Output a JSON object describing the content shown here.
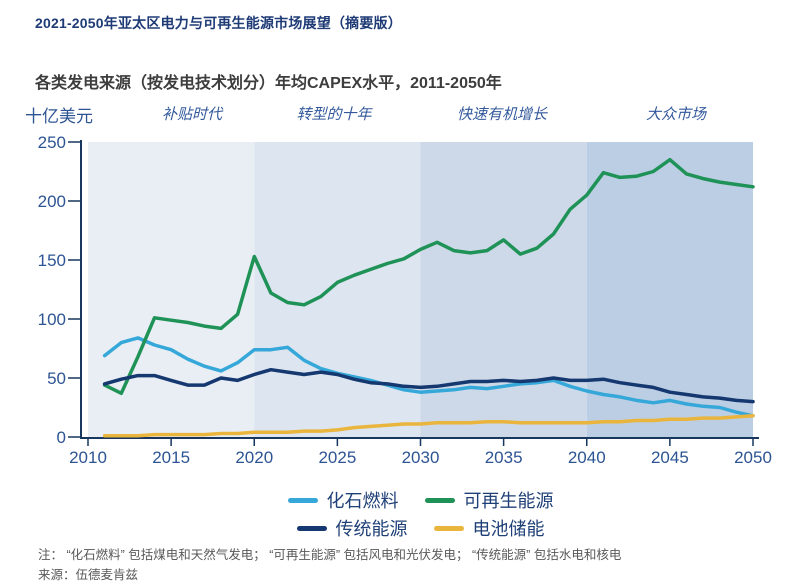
{
  "page_title": "2021-2050年亚太区电力与可再生能源市场展望（摘要版）",
  "chart_data": {
    "type": "line",
    "title": "各类发电来源（按发电技术划分）年均CAPEX水平，2011-2050年",
    "unit_label": "十亿美元",
    "xlim": [
      2010,
      2050
    ],
    "ylim": [
      0,
      250
    ],
    "y_ticks": [
      0,
      50,
      100,
      150,
      200,
      250
    ],
    "x_ticks": [
      2010,
      2015,
      2020,
      2025,
      2030,
      2035,
      2040,
      2045,
      2050
    ],
    "grid": false,
    "legend_position": "bottom",
    "era_bands": [
      {
        "label": "补贴时代",
        "start": 2010,
        "end": 2020,
        "color": "#e9eef4"
      },
      {
        "label": "转型的十年",
        "start": 2020,
        "end": 2030,
        "color": "#dde5f0"
      },
      {
        "label": "快速有机增长",
        "start": 2030,
        "end": 2040,
        "color": "#cdd9e9"
      },
      {
        "label": "大众市场",
        "start": 2040,
        "end": 2050,
        "color": "#bccee4"
      }
    ],
    "x": [
      2011,
      2012,
      2013,
      2014,
      2015,
      2016,
      2017,
      2018,
      2019,
      2020,
      2021,
      2022,
      2023,
      2024,
      2025,
      2026,
      2027,
      2028,
      2029,
      2030,
      2031,
      2032,
      2033,
      2034,
      2035,
      2036,
      2037,
      2038,
      2039,
      2040,
      2041,
      2042,
      2043,
      2044,
      2045,
      2046,
      2047,
      2048,
      2049,
      2050
    ],
    "series": [
      {
        "id": "fossil",
        "name": "化石燃料",
        "color": "#35a8d9",
        "values": [
          69,
          80,
          84,
          78,
          74,
          66,
          60,
          56,
          63,
          74,
          74,
          76,
          65,
          58,
          54,
          51,
          48,
          44,
          40,
          38,
          39,
          40,
          42,
          41,
          43,
          45,
          46,
          48,
          43,
          39,
          36,
          34,
          31,
          29,
          31,
          28,
          26,
          25,
          21,
          18
        ]
      },
      {
        "id": "renewable",
        "name": "可再生能源",
        "color": "#1f9257",
        "values": [
          44,
          37,
          68,
          101,
          99,
          97,
          94,
          92,
          104,
          153,
          122,
          114,
          112,
          119,
          131,
          137,
          142,
          147,
          151,
          159,
          165,
          158,
          156,
          158,
          167,
          155,
          160,
          172,
          193,
          205,
          224,
          220,
          221,
          225,
          235,
          223,
          219,
          216,
          214,
          212
        ]
      },
      {
        "id": "traditional",
        "name": "传统能源",
        "color": "#14386f",
        "values": [
          45,
          49,
          52,
          52,
          48,
          44,
          44,
          50,
          48,
          53,
          57,
          55,
          53,
          55,
          53,
          49,
          46,
          45,
          43,
          42,
          43,
          45,
          47,
          47,
          48,
          47,
          48,
          50,
          48,
          48,
          49,
          46,
          44,
          42,
          38,
          36,
          34,
          33,
          31,
          30
        ]
      },
      {
        "id": "battery",
        "name": "电池储能",
        "color": "#e9b53d",
        "values": [
          1,
          1,
          1,
          2,
          2,
          2,
          2,
          3,
          3,
          4,
          4,
          4,
          5,
          5,
          6,
          8,
          9,
          10,
          11,
          11,
          12,
          12,
          12,
          13,
          13,
          12,
          12,
          12,
          12,
          12,
          13,
          13,
          14,
          14,
          15,
          15,
          16,
          16,
          17,
          18
        ]
      }
    ]
  },
  "notes": {
    "note": "注： “化石燃料” 包括煤电和天然气发电； “可再生能源” 包括风电和光伏发电； “传统能源” 包括水电和核电",
    "source": "来源：伍德麦肯兹"
  }
}
